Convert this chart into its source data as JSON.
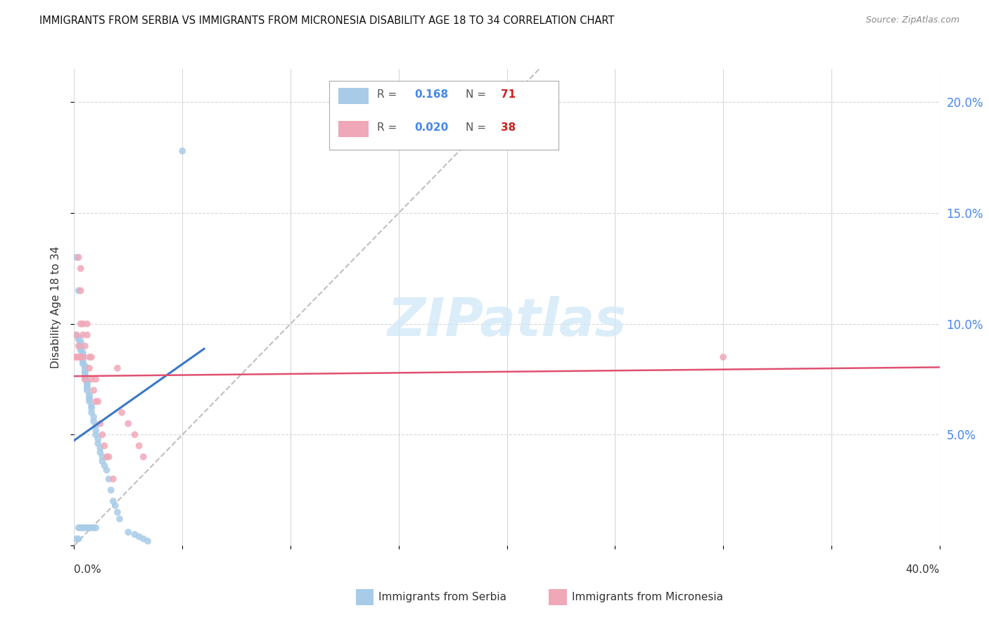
{
  "title": "IMMIGRANTS FROM SERBIA VS IMMIGRANTS FROM MICRONESIA DISABILITY AGE 18 TO 34 CORRELATION CHART",
  "source": "Source: ZipAtlas.com",
  "ylabel": "Disability Age 18 to 34",
  "xlim": [
    0.0,
    0.4
  ],
  "ylim": [
    0.0,
    0.215
  ],
  "serbia_R": 0.168,
  "serbia_N": 71,
  "micronesia_R": 0.02,
  "micronesia_N": 38,
  "serbia_color": "#a8cce8",
  "micronesia_color": "#f0a8b8",
  "serbia_line_color": "#3a78c9",
  "micronesia_line_color": "#e05070",
  "diagonal_color": "#b0b0b0",
  "watermark_color": "#d0e8f8",
  "ytick_vals": [
    0.0,
    0.05,
    0.1,
    0.15,
    0.2
  ],
  "ytick_labels": [
    "",
    "5.0%",
    "10.0%",
    "15.0%",
    "20.0%"
  ],
  "xtick_vals": [
    0.0,
    0.05,
    0.1,
    0.15,
    0.2,
    0.25,
    0.3,
    0.35,
    0.4
  ],
  "serbia_x": [
    0.001,
    0.001,
    0.002,
    0.002,
    0.002,
    0.003,
    0.003,
    0.003,
    0.003,
    0.003,
    0.004,
    0.004,
    0.004,
    0.004,
    0.004,
    0.004,
    0.005,
    0.005,
    0.005,
    0.005,
    0.005,
    0.005,
    0.005,
    0.006,
    0.006,
    0.006,
    0.006,
    0.006,
    0.007,
    0.007,
    0.007,
    0.007,
    0.008,
    0.008,
    0.008,
    0.009,
    0.009,
    0.01,
    0.01,
    0.01,
    0.011,
    0.011,
    0.012,
    0.012,
    0.013,
    0.013,
    0.014,
    0.015,
    0.016,
    0.017,
    0.018,
    0.019,
    0.02,
    0.021,
    0.025,
    0.028,
    0.03,
    0.032,
    0.034,
    0.05,
    0.001,
    0.002,
    0.002,
    0.003,
    0.004,
    0.005,
    0.006,
    0.007,
    0.008,
    0.009,
    0.01
  ],
  "serbia_y": [
    0.13,
    0.095,
    0.094,
    0.093,
    0.115,
    0.092,
    0.091,
    0.09,
    0.089,
    0.088,
    0.087,
    0.086,
    0.085,
    0.084,
    0.083,
    0.082,
    0.081,
    0.08,
    0.079,
    0.078,
    0.077,
    0.076,
    0.075,
    0.074,
    0.073,
    0.072,
    0.071,
    0.07,
    0.068,
    0.067,
    0.066,
    0.065,
    0.063,
    0.062,
    0.06,
    0.058,
    0.056,
    0.054,
    0.052,
    0.05,
    0.048,
    0.046,
    0.044,
    0.042,
    0.04,
    0.038,
    0.036,
    0.034,
    0.03,
    0.025,
    0.02,
    0.018,
    0.015,
    0.012,
    0.006,
    0.005,
    0.004,
    0.003,
    0.002,
    0.178,
    0.003,
    0.003,
    0.008,
    0.008,
    0.008,
    0.008,
    0.008,
    0.008,
    0.008,
    0.008,
    0.008
  ],
  "micronesia_x": [
    0.001,
    0.001,
    0.002,
    0.002,
    0.003,
    0.003,
    0.003,
    0.004,
    0.004,
    0.005,
    0.005,
    0.006,
    0.006,
    0.007,
    0.007,
    0.008,
    0.008,
    0.009,
    0.01,
    0.01,
    0.011,
    0.012,
    0.013,
    0.014,
    0.015,
    0.016,
    0.018,
    0.02,
    0.022,
    0.025,
    0.028,
    0.03,
    0.032,
    0.3,
    0.001,
    0.002,
    0.003,
    0.004
  ],
  "micronesia_y": [
    0.095,
    0.085,
    0.13,
    0.09,
    0.125,
    0.115,
    0.1,
    0.1,
    0.095,
    0.09,
    0.075,
    0.1,
    0.095,
    0.08,
    0.085,
    0.085,
    0.075,
    0.07,
    0.065,
    0.075,
    0.065,
    0.055,
    0.05,
    0.045,
    0.04,
    0.04,
    0.03,
    0.08,
    0.06,
    0.055,
    0.05,
    0.045,
    0.04,
    0.085,
    0.085,
    0.085,
    0.085,
    0.085
  ]
}
